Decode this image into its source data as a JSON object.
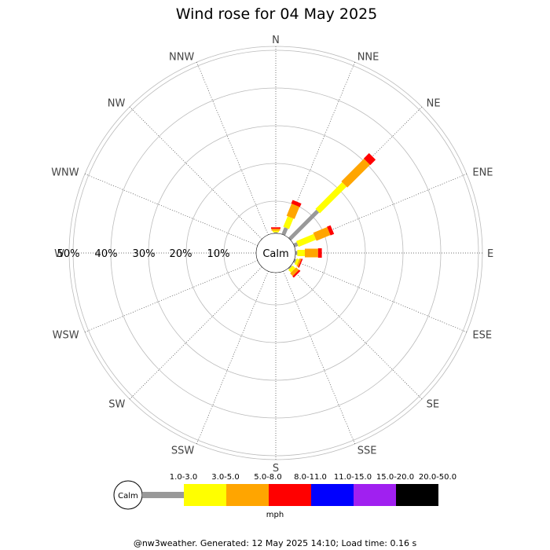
{
  "chart_data": {
    "type": "wind-rose",
    "title": "Wind rose for 04 May 2025",
    "directions": [
      "N",
      "NNE",
      "NE",
      "ENE",
      "E",
      "ESE",
      "SE",
      "SSE",
      "S",
      "SSW",
      "SW",
      "WSW",
      "W",
      "WNW",
      "NW",
      "NNW"
    ],
    "ring_labels": [
      "50%",
      "40%",
      "30%",
      "20%",
      "10%"
    ],
    "calm_label": "Calm",
    "units": "mph",
    "speed_bins": [
      "1.0-3.0",
      "3.0-5.0",
      "5.0-8.0",
      "8.0-11.0",
      "11.0-15.0",
      "15.0-20.0",
      "20.0-50.0"
    ],
    "bin_colors": [
      "#999999",
      "#ffff00",
      "#ffa500",
      "#ff0000",
      "#0000ff",
      "#a020f0",
      "#000000"
    ],
    "series": [
      {
        "direction": "N",
        "values": [
          0.3,
          0.4,
          0.5,
          0.4,
          0,
          0,
          0
        ]
      },
      {
        "direction": "NNE",
        "values": [
          2.0,
          3.0,
          3.5,
          1.0,
          0,
          0,
          0
        ]
      },
      {
        "direction": "NE",
        "values": [
          10.5,
          10.0,
          8.5,
          2.0,
          0,
          0,
          0
        ]
      },
      {
        "direction": "ENE",
        "values": [
          1.0,
          5.0,
          4.0,
          1.0,
          0,
          0,
          0
        ]
      },
      {
        "direction": "E",
        "values": [
          0.5,
          2.0,
          3.5,
          1.0,
          0,
          0,
          0
        ]
      },
      {
        "direction": "ESE",
        "values": [
          0.5,
          0.7,
          0.5,
          0.3,
          0,
          0,
          0
        ]
      },
      {
        "direction": "SE",
        "values": [
          0.3,
          1.0,
          1.0,
          0.5,
          0,
          0,
          0
        ]
      },
      {
        "direction": "SSE",
        "values": [
          0,
          0,
          0,
          0,
          0,
          0,
          0
        ]
      },
      {
        "direction": "S",
        "values": [
          0,
          0,
          0,
          0,
          0,
          0,
          0
        ]
      },
      {
        "direction": "SSW",
        "values": [
          0,
          0,
          0,
          0,
          0,
          0,
          0
        ]
      },
      {
        "direction": "SW",
        "values": [
          0,
          0,
          0,
          0,
          0,
          0,
          0
        ]
      },
      {
        "direction": "WSW",
        "values": [
          0,
          0,
          0,
          0,
          0,
          0,
          0
        ]
      },
      {
        "direction": "W",
        "values": [
          0,
          0,
          0,
          0,
          0,
          0,
          0
        ]
      },
      {
        "direction": "WNW",
        "values": [
          0,
          0,
          0,
          0,
          0,
          0,
          0
        ]
      },
      {
        "direction": "NW",
        "values": [
          0,
          0,
          0,
          0,
          0,
          0,
          0
        ]
      },
      {
        "direction": "NNW",
        "values": [
          0,
          0,
          0,
          0,
          0,
          0,
          0
        ]
      }
    ],
    "r_max": 55
  },
  "footer": "@nw3weather. Generated: 12 May 2025 14:10; Load time: 0.16 s"
}
